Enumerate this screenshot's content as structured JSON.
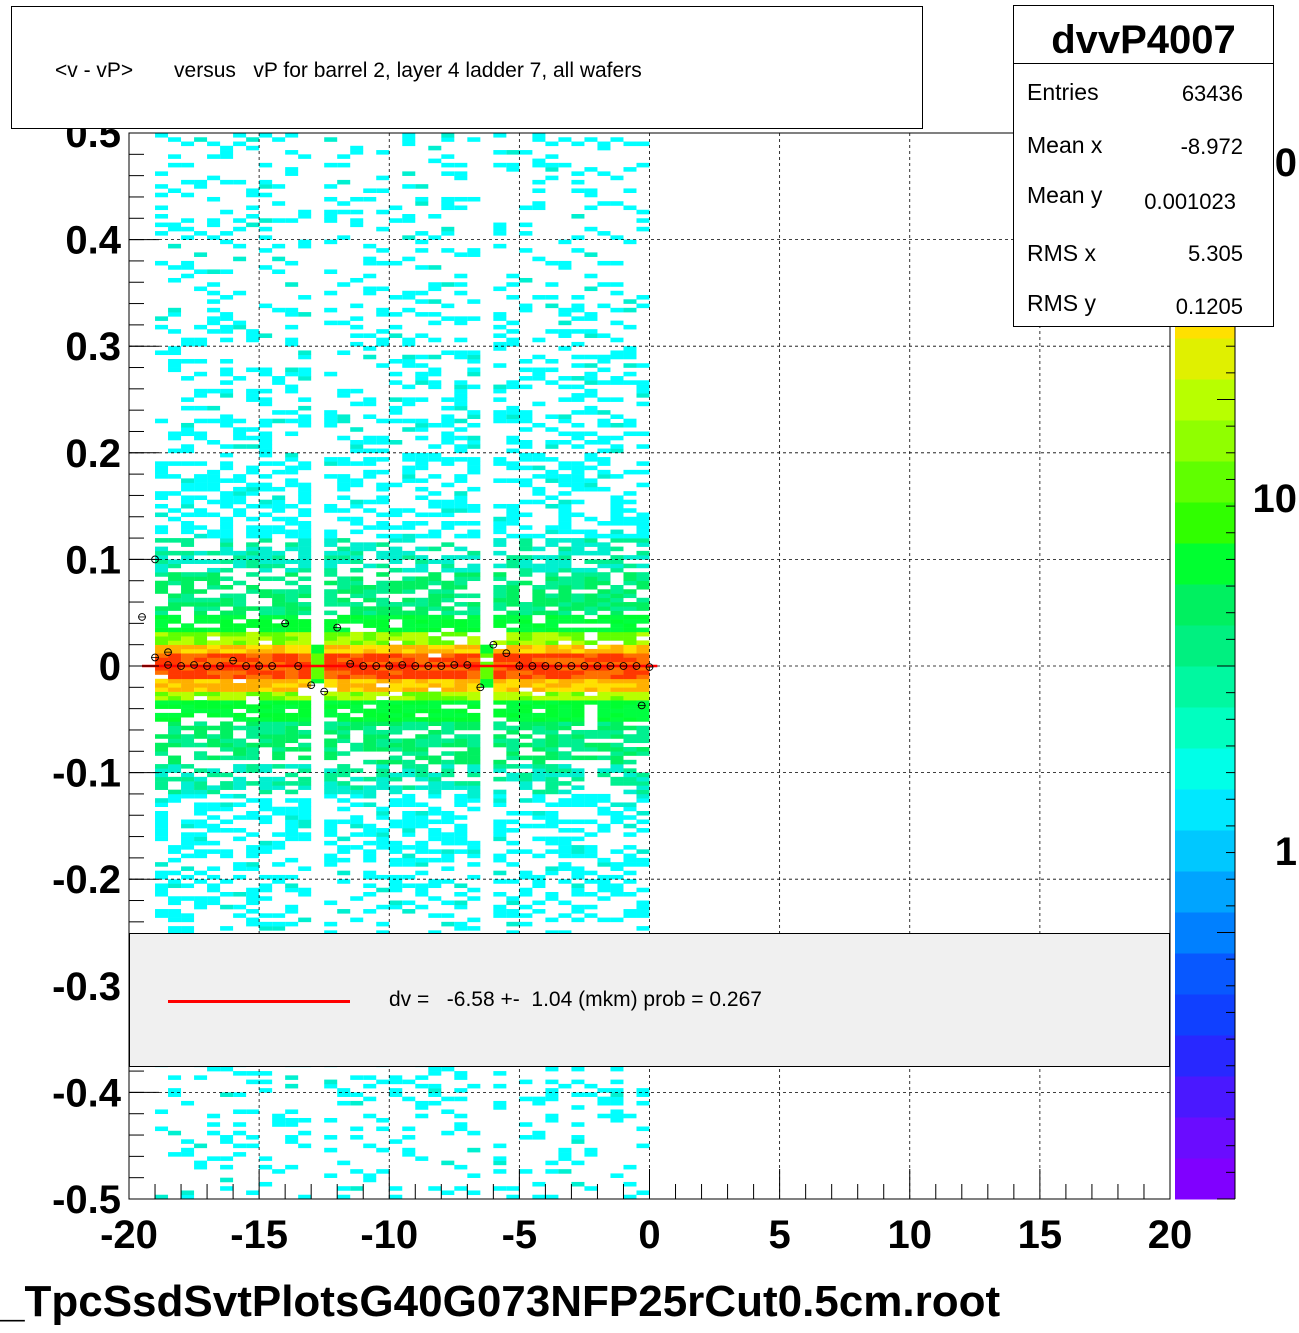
{
  "title": "<v - vP>       versus   vP for barrel 2, layer 4 ladder 7, all wafers",
  "stats": {
    "name": "dvvP4007",
    "rows": [
      {
        "label": "Entries",
        "value": "63436"
      },
      {
        "label": "Mean x",
        "value": "-8.972"
      },
      {
        "label": "Mean y",
        "value": "0.001023"
      },
      {
        "label": "RMS x",
        "value": "5.305"
      },
      {
        "label": "RMS y",
        "value": "0.1205"
      }
    ]
  },
  "legend": {
    "text": "dv =   -6.58 +-  1.04 (mkm) prob = 0.267",
    "line_color": "#ff0000"
  },
  "footer": "_TpcSsdSvtPlotsG40G073NFP25rCut0.5cm.root",
  "colorbar": {
    "labels": [
      "1",
      "10",
      "0"
    ],
    "colors": [
      "#8000ff",
      "#6a0cff",
      "#4a18ff",
      "#2828ff",
      "#1040ff",
      "#0858ff",
      "#0080ff",
      "#00a4ff",
      "#00c8ff",
      "#00e8ff",
      "#00ffe8",
      "#00ffc0",
      "#00f8a0",
      "#00f080",
      "#00f060",
      "#00ff30",
      "#30ff00",
      "#60ff00",
      "#90ff00",
      "#b8ff00",
      "#e0f000",
      "#ffe000",
      "#ffb000",
      "#ff7000",
      "#ff3800",
      "#e01800"
    ]
  },
  "chart_data": {
    "type": "heatmap",
    "xlim": [
      -20,
      20
    ],
    "ylim": [
      -0.5,
      0.5
    ],
    "xticks": [
      "-20",
      "-15",
      "-10",
      "-5",
      "0",
      "5",
      "10",
      "15",
      "20"
    ],
    "yticks": [
      "0.5",
      "0.4",
      "0.3",
      "0.2",
      "0.1",
      "0",
      "-0.1",
      "-0.2",
      "-0.3",
      "-0.4",
      "-0.5"
    ],
    "grid": true,
    "occupied_x_range": [
      -19,
      0
    ],
    "gap_x_values": [
      -12.8,
      -6.2
    ],
    "core_band_y": [
      -0.03,
      0.03
    ],
    "profile_points": [
      {
        "x": -19.5,
        "y": 0.046
      },
      {
        "x": -19.0,
        "y": 0.1
      },
      {
        "x": -19.0,
        "y": 0.008
      },
      {
        "x": -18.5,
        "y": 0.013
      },
      {
        "x": -18.5,
        "y": 0.001
      },
      {
        "x": -18.0,
        "y": 0.0
      },
      {
        "x": -17.5,
        "y": 0.001
      },
      {
        "x": -17.0,
        "y": 0.0
      },
      {
        "x": -16.5,
        "y": 0.0
      },
      {
        "x": -16.0,
        "y": 0.005
      },
      {
        "x": -15.5,
        "y": 0.0
      },
      {
        "x": -15.0,
        "y": 0.0
      },
      {
        "x": -14.5,
        "y": 0.0
      },
      {
        "x": -14.0,
        "y": 0.04
      },
      {
        "x": -13.5,
        "y": 0.0
      },
      {
        "x": -13.0,
        "y": -0.018
      },
      {
        "x": -12.5,
        "y": -0.024
      },
      {
        "x": -12.0,
        "y": 0.036
      },
      {
        "x": -11.5,
        "y": 0.002
      },
      {
        "x": -11.0,
        "y": 0.0
      },
      {
        "x": -10.5,
        "y": 0.0
      },
      {
        "x": -10.0,
        "y": 0.0
      },
      {
        "x": -9.5,
        "y": 0.001
      },
      {
        "x": -9.0,
        "y": 0.0
      },
      {
        "x": -8.5,
        "y": 0.0
      },
      {
        "x": -8.0,
        "y": 0.0
      },
      {
        "x": -7.5,
        "y": 0.001
      },
      {
        "x": -7.0,
        "y": 0.001
      },
      {
        "x": -6.5,
        "y": -0.02
      },
      {
        "x": -6.0,
        "y": 0.02
      },
      {
        "x": -5.5,
        "y": 0.012
      },
      {
        "x": -5.0,
        "y": 0.0
      },
      {
        "x": -4.5,
        "y": 0.0
      },
      {
        "x": -4.0,
        "y": 0.0
      },
      {
        "x": -3.5,
        "y": 0.0
      },
      {
        "x": -3.0,
        "y": 0.0
      },
      {
        "x": -2.5,
        "y": 0.0
      },
      {
        "x": -2.0,
        "y": 0.0
      },
      {
        "x": -1.5,
        "y": 0.0
      },
      {
        "x": -1.0,
        "y": 0.0
      },
      {
        "x": -0.5,
        "y": 0.0
      },
      {
        "x": -0.3,
        "y": -0.037
      },
      {
        "x": 0.0,
        "y": -0.001
      }
    ],
    "fit_line": {
      "x": [
        -19.5,
        0.3
      ],
      "y": [
        0.0,
        0.0
      ],
      "color": "#ff0000"
    }
  }
}
